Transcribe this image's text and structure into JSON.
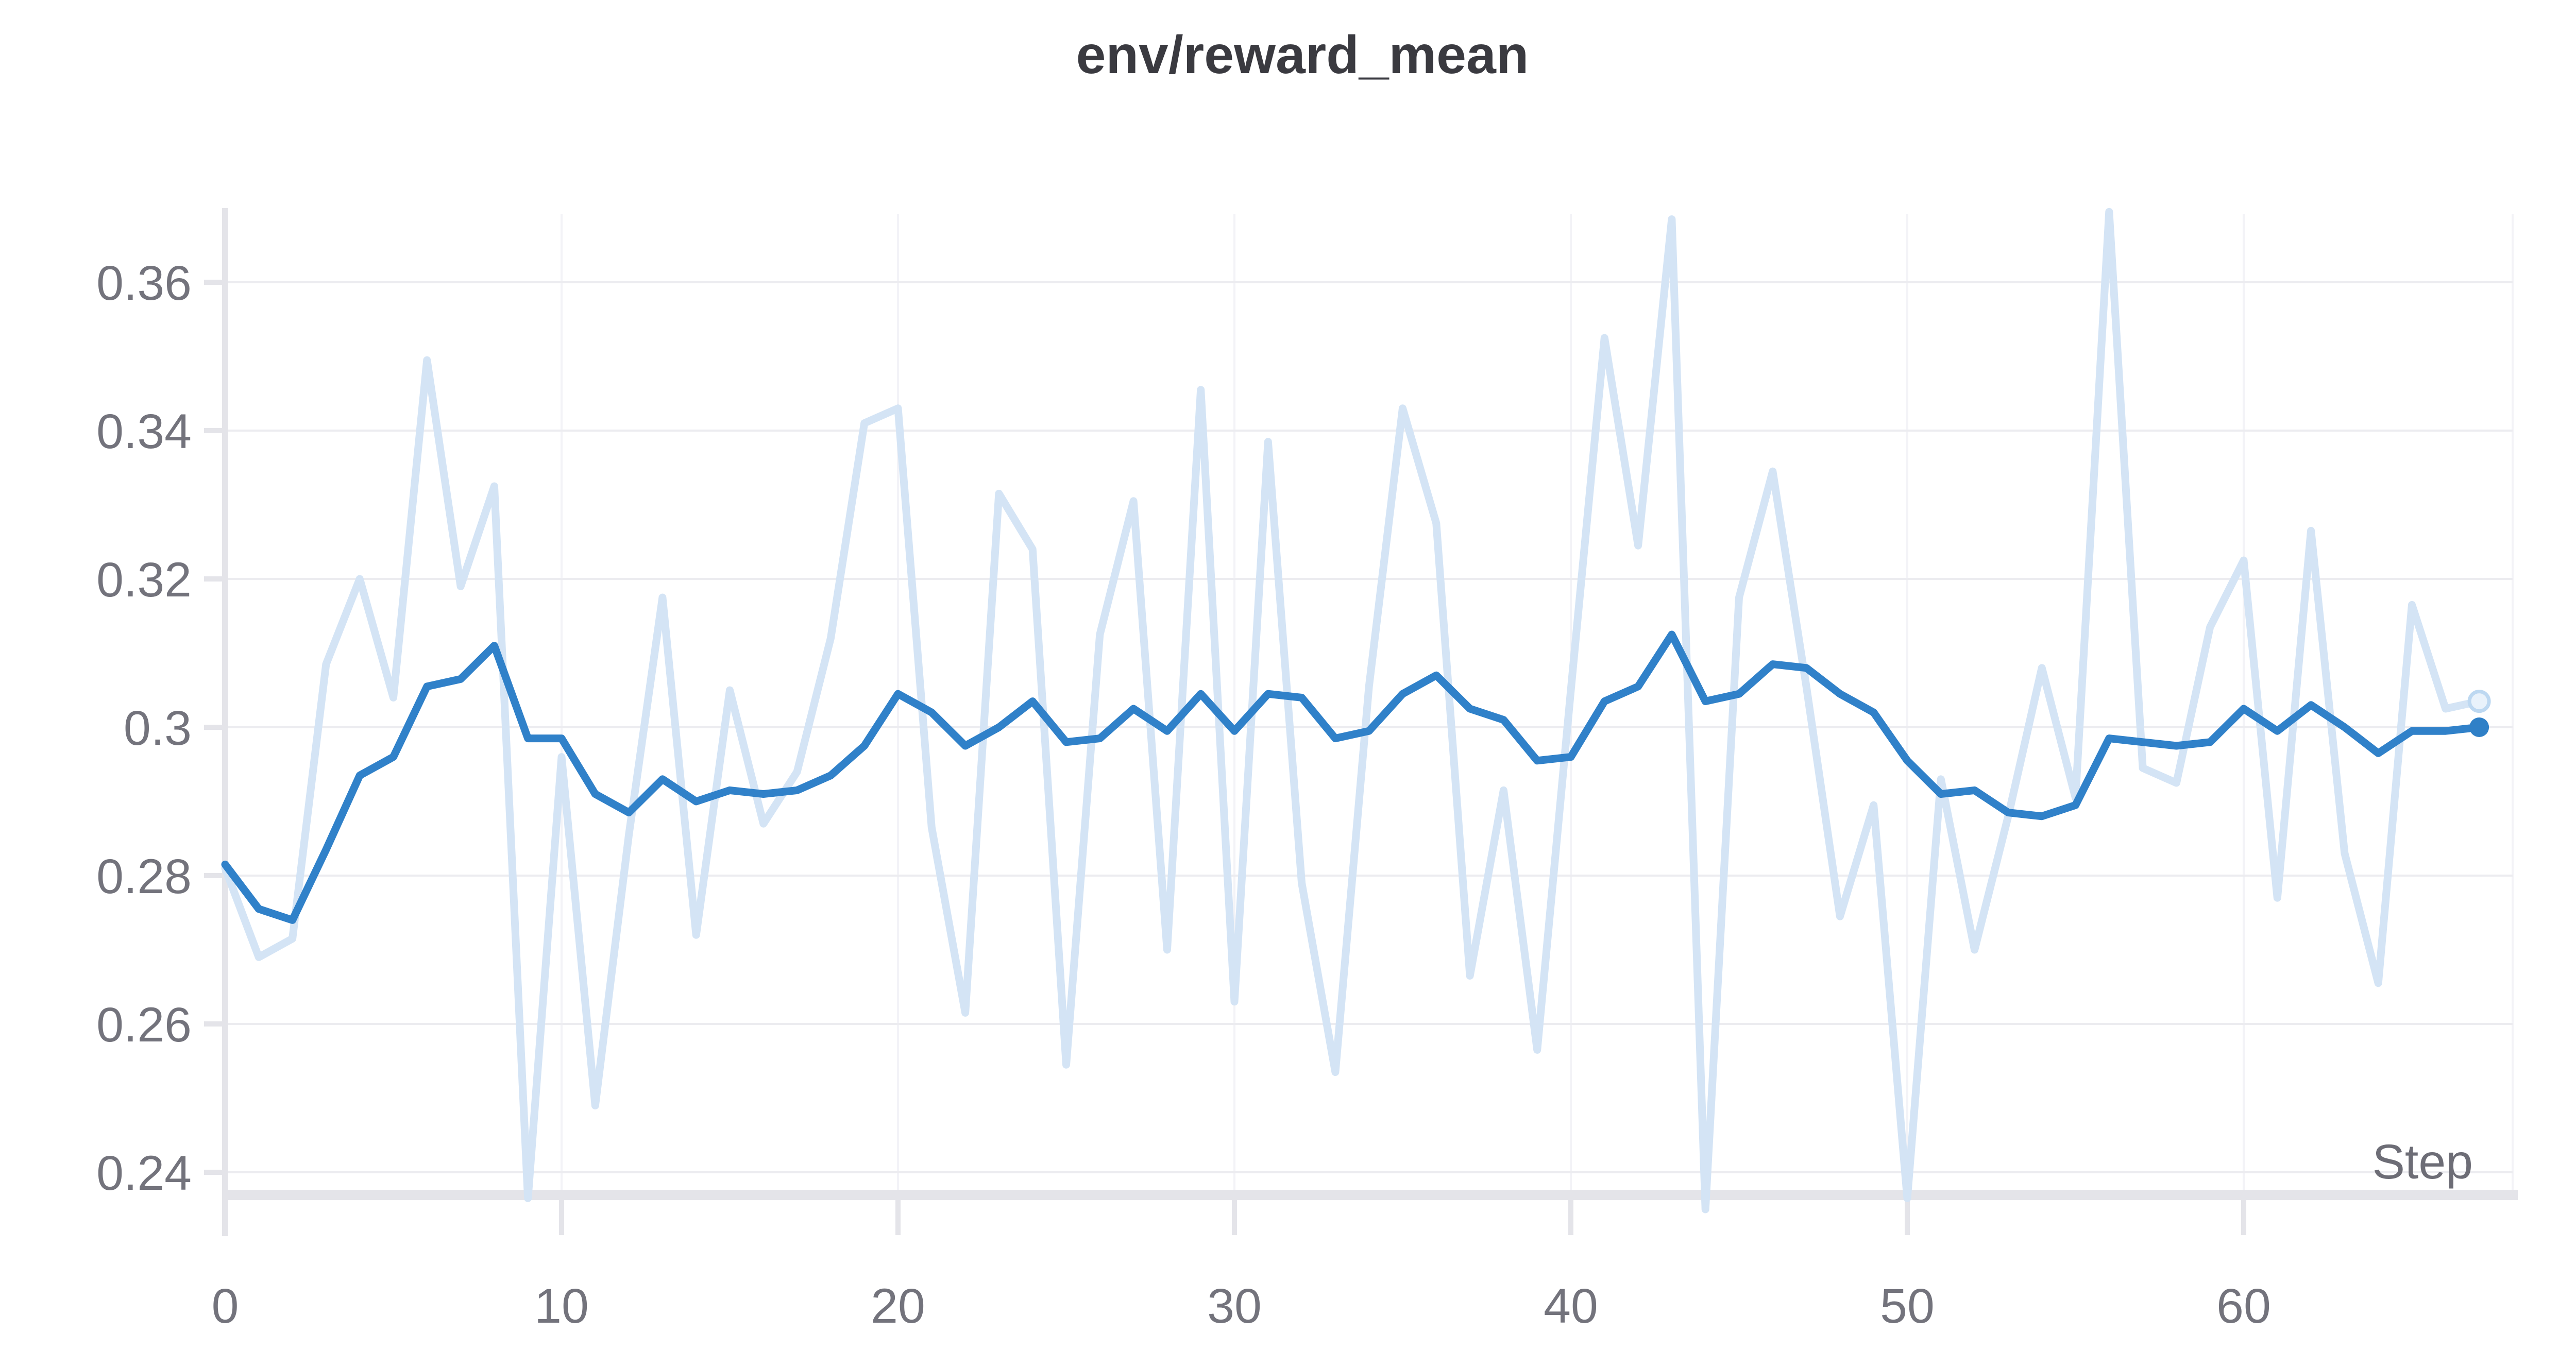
{
  "title": "env/reward_mean",
  "axes": {
    "x_label": "Step",
    "x_ticks": [
      0,
      10,
      20,
      30,
      40,
      50,
      60
    ],
    "y_ticks": [
      0.24,
      0.26,
      0.28,
      0.3,
      0.32,
      0.34,
      0.36
    ]
  },
  "colors": {
    "raw_line": "#d4e4f5",
    "smoothed_line": "#3081c9",
    "end_dot_fill": "#2f80c7",
    "end_ring_stroke": "#bdd8f1",
    "end_ring_fill": "#e9f2fb",
    "gridline": "#ececf0",
    "axis_band": "#e4e4e9",
    "faint_vgrid": "#f3f3f7",
    "tick_label": "#73737c",
    "step_label": "#6d6d76",
    "title": "#3a3a40"
  },
  "chart_data": {
    "type": "line",
    "title": "env/reward_mean",
    "xlabel": "Step",
    "ylabel": "",
    "xlim": [
      0,
      68
    ],
    "ylim": [
      0.235,
      0.369
    ],
    "grid": true,
    "legend_position": "none",
    "x": [
      0,
      1,
      2,
      3,
      4,
      5,
      6,
      7,
      8,
      9,
      10,
      11,
      12,
      13,
      14,
      15,
      16,
      17,
      18,
      19,
      20,
      21,
      22,
      23,
      24,
      25,
      26,
      27,
      28,
      29,
      30,
      31,
      32,
      33,
      34,
      35,
      36,
      37,
      38,
      39,
      40,
      41,
      42,
      43,
      44,
      45,
      46,
      47,
      48,
      49,
      50,
      51,
      52,
      53,
      54,
      55,
      56,
      57,
      58,
      59,
      60,
      61,
      62,
      63,
      64,
      65,
      66,
      67
    ],
    "series": [
      {
        "name": "raw",
        "values": [
          0.281,
          0.269,
          0.2715,
          0.3085,
          0.32,
          0.304,
          0.3495,
          0.319,
          0.3325,
          0.2365,
          0.296,
          0.249,
          0.2855,
          0.3175,
          0.272,
          0.305,
          0.287,
          0.294,
          0.312,
          0.341,
          0.343,
          0.2865,
          0.2615,
          0.3315,
          0.324,
          0.2545,
          0.3125,
          0.3305,
          0.27,
          0.3455,
          0.263,
          0.3385,
          0.279,
          0.2535,
          0.3055,
          0.343,
          0.3275,
          0.2665,
          0.2915,
          0.2565,
          0.305,
          0.3525,
          0.3245,
          0.3685,
          0.235,
          0.3175,
          0.3345,
          0.3055,
          0.2745,
          0.2895,
          0.2365,
          0.293,
          0.27,
          0.288,
          0.308,
          0.2905,
          0.3695,
          0.2945,
          0.2925,
          0.3135,
          0.3225,
          0.277,
          0.3265,
          0.283,
          0.2655,
          0.3165,
          0.3025,
          0.3035
        ]
      },
      {
        "name": "smoothed",
        "values": [
          0.2815,
          0.2755,
          0.274,
          0.2835,
          0.2935,
          0.296,
          0.3055,
          0.3065,
          0.311,
          0.2985,
          0.2985,
          0.291,
          0.2885,
          0.293,
          0.29,
          0.2915,
          0.291,
          0.2915,
          0.2935,
          0.2975,
          0.3045,
          0.302,
          0.2975,
          0.3,
          0.3035,
          0.298,
          0.2985,
          0.3025,
          0.2995,
          0.3045,
          0.2995,
          0.3045,
          0.304,
          0.2985,
          0.2995,
          0.3045,
          0.307,
          0.3025,
          0.301,
          0.2955,
          0.296,
          0.3035,
          0.3055,
          0.3125,
          0.3035,
          0.3045,
          0.3085,
          0.308,
          0.3045,
          0.302,
          0.2955,
          0.291,
          0.2915,
          0.2885,
          0.288,
          0.2895,
          0.2985,
          0.298,
          0.2975,
          0.298,
          0.3025,
          0.2995,
          0.303,
          0.3,
          0.2965,
          0.2995,
          0.2995,
          0.3
        ]
      }
    ]
  }
}
